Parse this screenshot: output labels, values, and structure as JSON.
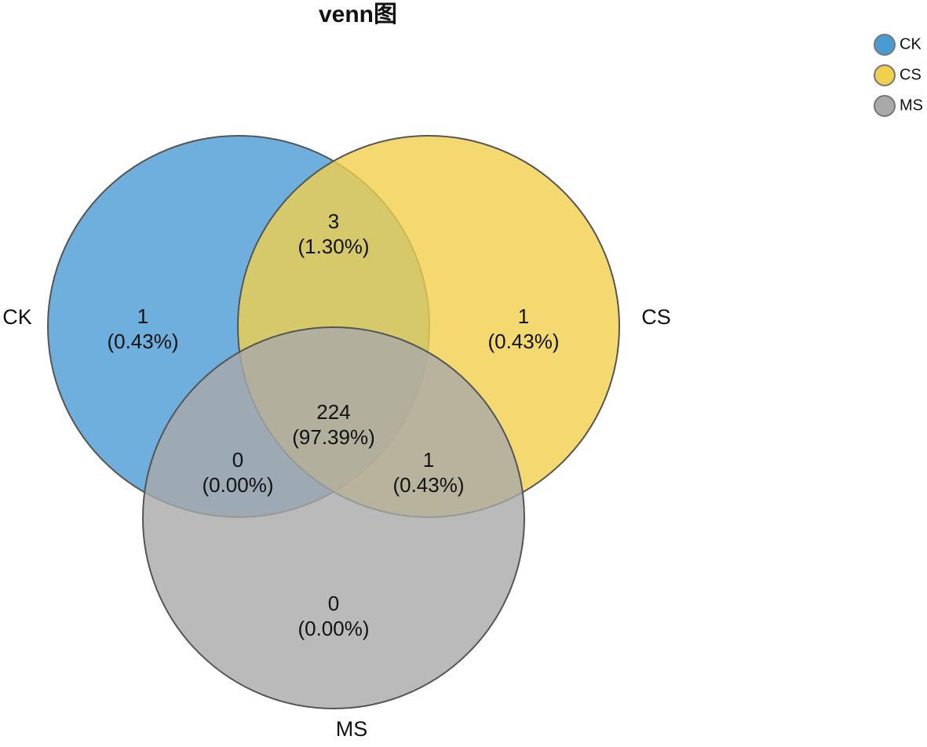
{
  "chart_data": {
    "type": "venn",
    "title": "venn图",
    "sets": [
      {
        "name": "CK",
        "color": "#4a9bd4"
      },
      {
        "name": "CS",
        "color": "#f0d04c"
      },
      {
        "name": "MS",
        "color": "#a9a9a9"
      }
    ],
    "values": [
      1,
      1,
      0,
      3,
      0,
      1,
      224
    ],
    "percent_labels": [
      "(0.43%)",
      "(0.43%)",
      "(0.00%)",
      "(1.30%)",
      "(0.00%)",
      "(0.43%)",
      "(97.39%)"
    ],
    "legend": "top-right"
  }
}
